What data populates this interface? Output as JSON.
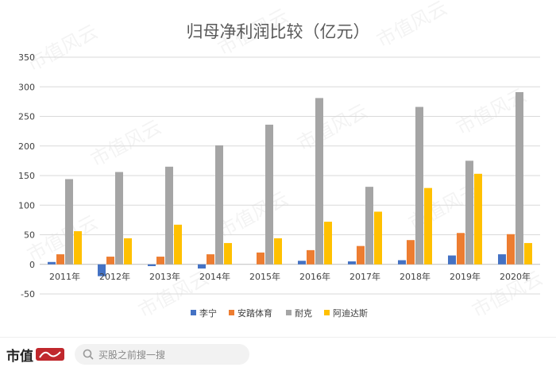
{
  "chart_data": {
    "type": "bar",
    "title": "归母净利润比较（亿元）",
    "categories": [
      "2011年",
      "2012年",
      "2013年",
      "2014年",
      "2015年",
      "2016年",
      "2017年",
      "2018年",
      "2019年",
      "2020年"
    ],
    "series": [
      {
        "name": "李宁",
        "color": "#4472C4",
        "values": [
          4,
          -20,
          -3,
          -7,
          0,
          6,
          5,
          7,
          15,
          17
        ]
      },
      {
        "name": "安踏体育",
        "color": "#ED7D31",
        "values": [
          17,
          13,
          13,
          17,
          20,
          24,
          31,
          41,
          53,
          51
        ]
      },
      {
        "name": "耐克",
        "color": "#A5A5A5",
        "values": [
          144,
          156,
          165,
          201,
          236,
          281,
          131,
          266,
          175,
          291
        ]
      },
      {
        "name": "阿迪达斯",
        "color": "#FFC000",
        "values": [
          56,
          44,
          67,
          36,
          44,
          72,
          89,
          129,
          153,
          36
        ]
      }
    ],
    "ylim": [
      -50,
      350
    ],
    "yticks": [
      -50,
      0,
      50,
      100,
      150,
      200,
      250,
      300,
      350
    ],
    "grid": true,
    "legend": "bottom"
  },
  "watermark": "市值风云",
  "footer": {
    "brand": "市值",
    "search_hint": "买股之前搜一搜"
  }
}
